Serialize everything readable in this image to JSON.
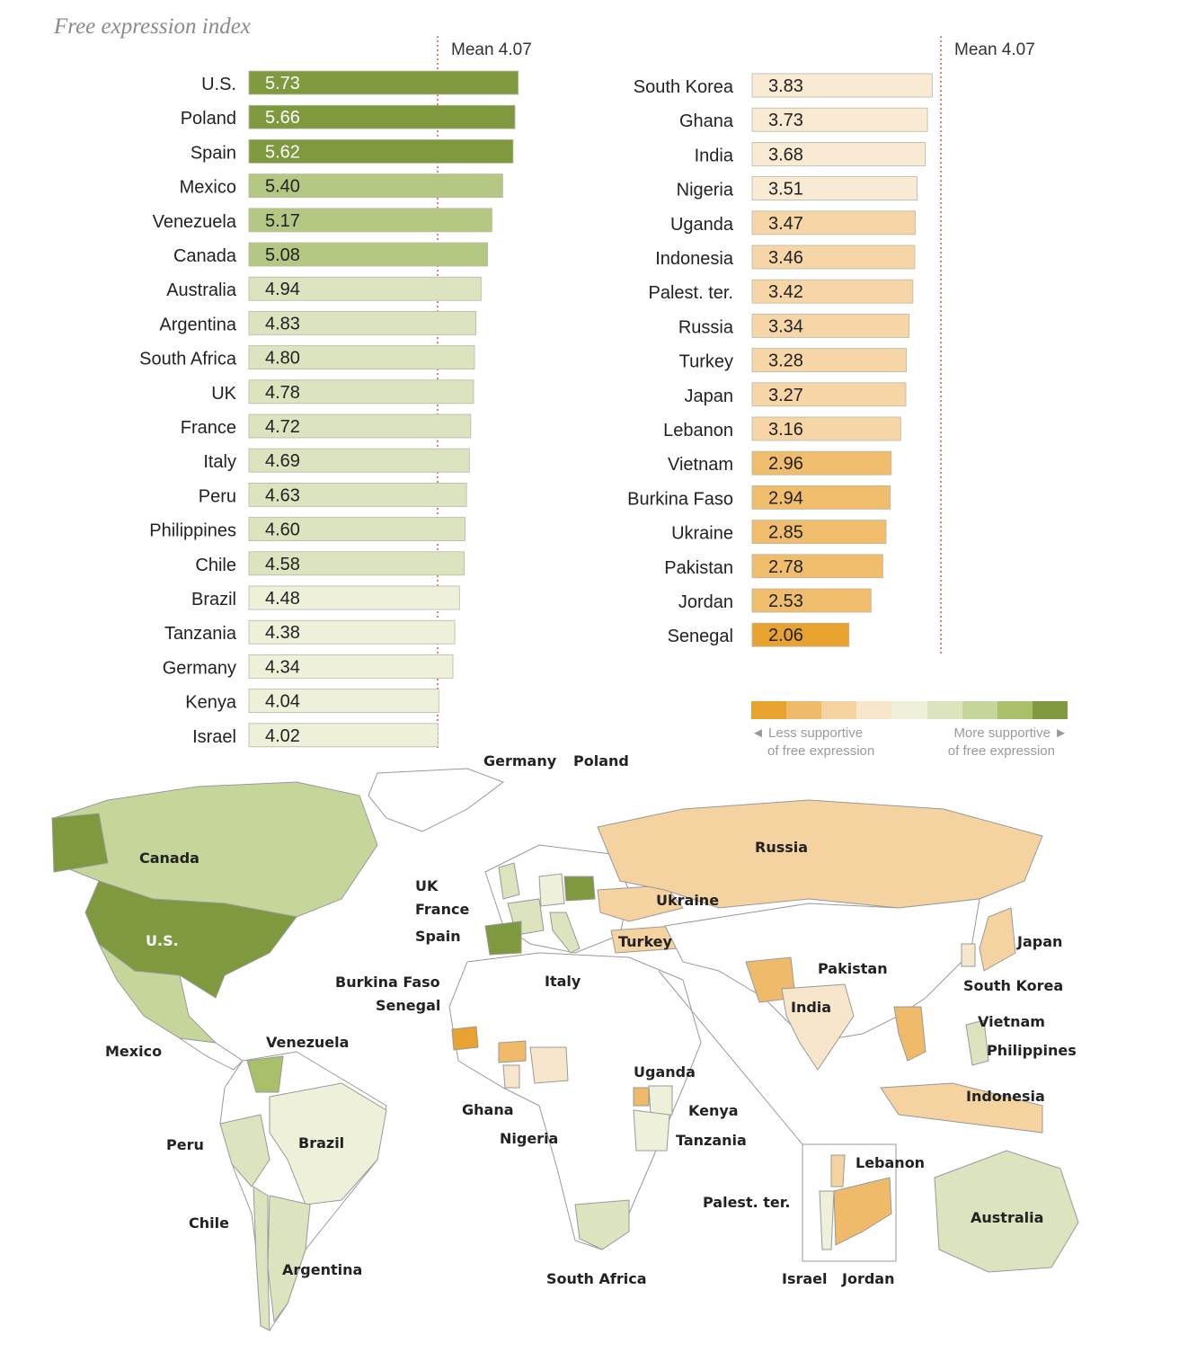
{
  "subtitle": "Free expression index",
  "mean_label": "Mean",
  "mean_value": "4.07",
  "legend": {
    "less": "◄ Less supportive of free expression",
    "less_line1": "◄ Less supportive",
    "less_line2": "of free expression",
    "more_line1": "More supportive ►",
    "more_line2": "of free expression",
    "colors": [
      "#e8a230",
      "#efbb6a",
      "#f4d3a0",
      "#f7e6cb",
      "#eef0da",
      "#dbe4bf",
      "#c6d69a",
      "#a9bf6a",
      "#7f9a3e"
    ]
  },
  "chart_data": {
    "type": "bar",
    "orientation": "horizontal",
    "subtitle": "Free expression index",
    "mean": 4.07,
    "mean_label": "Mean  4.07",
    "panels": [
      {
        "categories": [
          "U.S.",
          "Poland",
          "Spain",
          "Mexico",
          "Venezuela",
          "Canada",
          "Australia",
          "Argentina",
          "South Africa",
          "UK",
          "France",
          "Italy",
          "Peru",
          "Philippines",
          "Chile",
          "Brazil",
          "Tanzania",
          "Germany",
          "Kenya",
          "Israel"
        ],
        "values": [
          5.73,
          5.66,
          5.62,
          5.4,
          5.17,
          5.08,
          4.94,
          4.83,
          4.8,
          4.78,
          4.72,
          4.69,
          4.63,
          4.6,
          4.58,
          4.48,
          4.38,
          4.34,
          4.04,
          4.02
        ],
        "labels": [
          "5.73",
          "5.66",
          "5.62",
          "5.40",
          "5.17",
          "5.08",
          "4.94",
          "4.83",
          "4.80",
          "4.78",
          "4.72",
          "4.69",
          "4.63",
          "4.60",
          "4.58",
          "4.48",
          "4.38",
          "4.34",
          "4.04",
          "4.02"
        ]
      },
      {
        "categories": [
          "South Korea",
          "Ghana",
          "India",
          "Nigeria",
          "Uganda",
          "Indonesia",
          "Palest. ter.",
          "Russia",
          "Turkey",
          "Japan",
          "Lebanon",
          "Vietnam",
          "Burkina Faso",
          "Ukraine",
          "Pakistan",
          "Jordan",
          "Senegal"
        ],
        "values": [
          3.83,
          3.73,
          3.68,
          3.51,
          3.47,
          3.46,
          3.42,
          3.34,
          3.28,
          3.27,
          3.16,
          2.96,
          2.94,
          2.85,
          2.78,
          2.53,
          2.06
        ],
        "labels": [
          "3.83",
          "3.73",
          "3.68",
          "3.51",
          "3.47",
          "3.46",
          "3.42",
          "3.34",
          "3.28",
          "3.27",
          "3.16",
          "2.96",
          "2.94",
          "2.85",
          "2.78",
          "2.53",
          "2.06"
        ]
      }
    ]
  },
  "map": {
    "labels": [
      "Canada",
      "U.S.",
      "Mexico",
      "Venezuela",
      "Peru",
      "Brazil",
      "Chile",
      "Argentina",
      "UK",
      "France",
      "Spain",
      "Germany",
      "Poland",
      "Italy",
      "Ukraine",
      "Russia",
      "Turkey",
      "Burkina Faso",
      "Senegal",
      "Ghana",
      "Nigeria",
      "Uganda",
      "Kenya",
      "Tanzania",
      "South Africa",
      "Pakistan",
      "India",
      "Japan",
      "South Korea",
      "Vietnam",
      "Philippines",
      "Indonesia",
      "Australia",
      "Lebanon",
      "Palest. ter.",
      "Israel",
      "Jordan"
    ]
  }
}
